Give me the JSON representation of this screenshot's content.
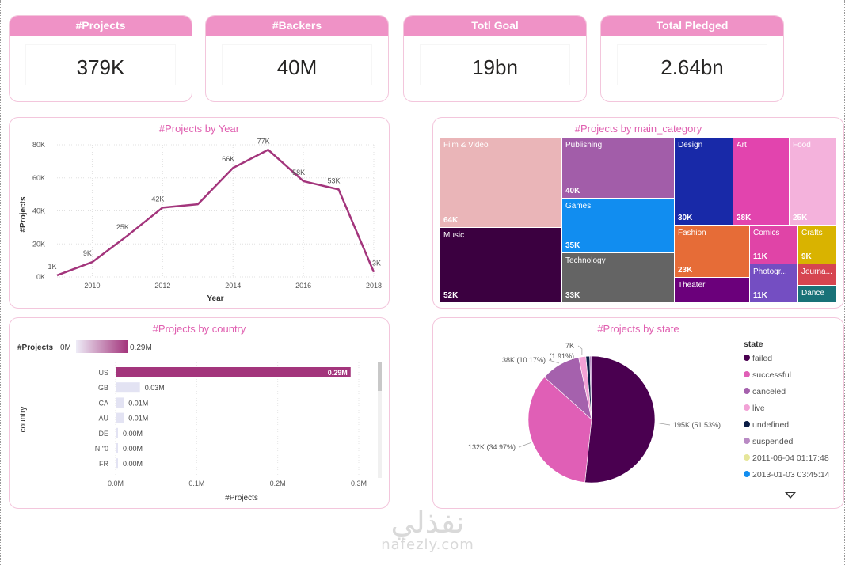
{
  "kpis": [
    {
      "title": "#Projects",
      "value": "379K"
    },
    {
      "title": "#Backers",
      "value": "40M"
    },
    {
      "title": "Totl Goal",
      "value": "19bn"
    },
    {
      "title": "Total Pledged",
      "value": "2.64bn"
    }
  ],
  "year_chart": {
    "title": "#Projects by Year",
    "xlabel": "Year",
    "ylabel": "#Projects",
    "x_ticks": [
      "2010",
      "2012",
      "2014",
      "2016",
      "2018"
    ],
    "y_ticks": [
      "0K",
      "20K",
      "40K",
      "60K",
      "80K"
    ],
    "line_color": "#a3357c"
  },
  "chart_data": [
    {
      "type": "line",
      "title": "#Projects by Year",
      "xlabel": "Year",
      "ylabel": "#Projects",
      "x": [
        2009,
        2010,
        2011,
        2012,
        2013,
        2014,
        2015,
        2016,
        2017,
        2018
      ],
      "values": [
        1,
        9,
        25,
        42,
        44,
        66,
        77,
        58,
        53,
        3
      ],
      "labels": [
        "1K",
        "9K",
        "25K",
        "42K",
        "",
        "66K",
        "77K",
        "58K",
        "53K",
        "3K"
      ],
      "xlim": [
        2009,
        2018
      ],
      "ylim": [
        0,
        80
      ]
    },
    {
      "type": "bar",
      "orientation": "horizontal",
      "title": "#Projects by country",
      "xlabel": "#Projects",
      "ylabel": "country",
      "categories": [
        "US",
        "GB",
        "CA",
        "AU",
        "DE",
        "N,\"0",
        "FR"
      ],
      "values": [
        0.29,
        0.03,
        0.01,
        0.01,
        0.0,
        0.0,
        0.0
      ],
      "labels": [
        "0.29M",
        "0.03M",
        "0.01M",
        "0.01M",
        "0.00M",
        "0.00M",
        "0.00M"
      ],
      "xlim": [
        0,
        0.3
      ]
    },
    {
      "type": "pie",
      "title": "#Projects by state",
      "categories": [
        "failed",
        "successful",
        "canceled",
        "live",
        "undefined",
        "suspended"
      ],
      "values": [
        195,
        132,
        38,
        7,
        3.6,
        1.8
      ],
      "labels": [
        "195K (51.53%)",
        "132K (34.97%)",
        "38K (10.17%)",
        "7K (1.91%)",
        "",
        ""
      ]
    },
    {
      "type": "treemap",
      "title": "#Projects by main_category",
      "categories": [
        "Film & Video",
        "Music",
        "Publishing",
        "Games",
        "Technology",
        "Design",
        "Art",
        "Food",
        "Fashion",
        "Comics",
        "Crafts",
        "Theater",
        "Photogr...",
        "Journa...",
        "Dance"
      ],
      "values": [
        64,
        52,
        40,
        35,
        33,
        30,
        28,
        25,
        23,
        11,
        9,
        11,
        11,
        5,
        4
      ]
    }
  ],
  "country_chart": {
    "title": "#Projects by country",
    "legend_label": "#Projects",
    "legend_min": "0M",
    "legend_max": "0.29M",
    "x_ticks": [
      "0.0M",
      "0.1M",
      "0.2M",
      "0.3M"
    ],
    "xlabel": "#Projects",
    "ylabel": "country"
  },
  "treemap": {
    "title": "#Projects by main_category",
    "cells": [
      {
        "label": "Film & Video",
        "value": "64K",
        "color": "#eab5b8"
      },
      {
        "label": "Music",
        "value": "52K",
        "color": "#3b0040"
      },
      {
        "label": "Publishing",
        "value": "40K",
        "color": "#a25da9"
      },
      {
        "label": "Games",
        "value": "35K",
        "color": "#118df0"
      },
      {
        "label": "Technology",
        "value": "33K",
        "color": "#646464"
      },
      {
        "label": "Design",
        "value": "30K",
        "color": "#1829a8"
      },
      {
        "label": "Art",
        "value": "28K",
        "color": "#e244ae"
      },
      {
        "label": "Food",
        "value": "25K",
        "color": "#f4b2dc"
      },
      {
        "label": "Fashion",
        "value": "23K",
        "color": "#e66c37"
      },
      {
        "label": "Comics",
        "value": "11K",
        "color": "#e044a7"
      },
      {
        "label": "Crafts",
        "value": "9K",
        "color": "#d9b300"
      },
      {
        "label": "Theater",
        "value": "",
        "color": "#6b007b"
      },
      {
        "label": "Photogr...",
        "value": "11K",
        "color": "#744ec2"
      },
      {
        "label": "Journa...",
        "value": "",
        "color": "#d64550"
      },
      {
        "label": "Dance",
        "value": "",
        "color": "#197278"
      }
    ]
  },
  "state_chart": {
    "title": "#Projects by state",
    "legend_title": "state",
    "legend": [
      {
        "label": "failed",
        "color": "#4a0050"
      },
      {
        "label": "successful",
        "color": "#e05fb6"
      },
      {
        "label": "canceled",
        "color": "#a561ad"
      },
      {
        "label": "live",
        "color": "#f2a2d6"
      },
      {
        "label": "undefined",
        "color": "#0b1c45"
      },
      {
        "label": "suspended",
        "color": "#b98ac4"
      },
      {
        "label": "2011-06-04 01:17:48",
        "color": "#e6e69a"
      },
      {
        "label": "2013-01-03 03:45:14",
        "color": "#118df0"
      }
    ]
  },
  "watermark": {
    "arabic": "نفذلي",
    "latin": "nafezly.com"
  }
}
